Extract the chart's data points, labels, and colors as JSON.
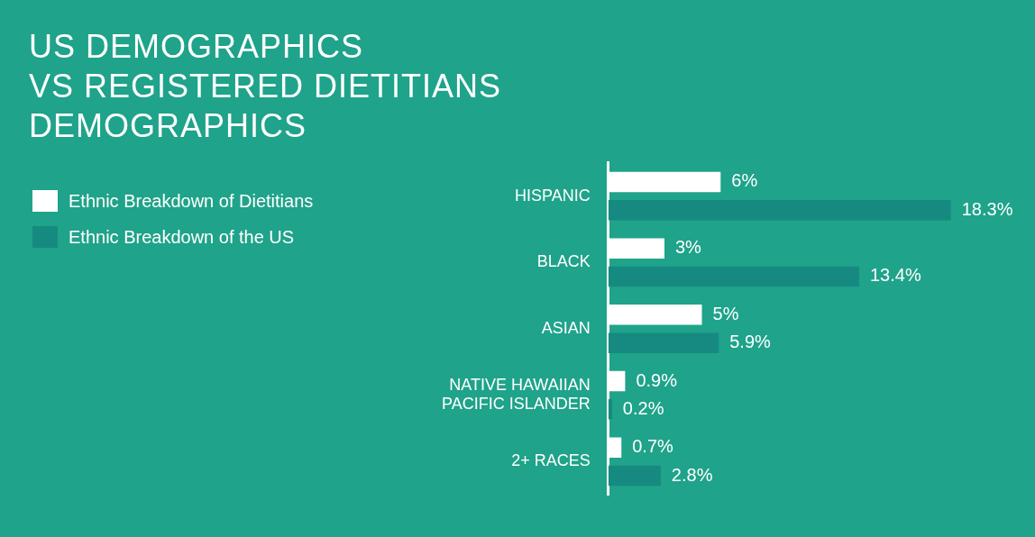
{
  "chart_data": {
    "type": "bar",
    "orientation": "horizontal",
    "title": "US DEMOGRAPHICS\nVS REGISTERED DIETITIANS\nDEMOGRAPHICS",
    "categories": [
      "HISPANIC",
      "BLACK",
      "ASIAN",
      "NATIVE HAWAIIAN PACIFIC ISLANDER",
      "2+ RACES"
    ],
    "series": [
      {
        "name": "Ethnic Breakdown of Dietitians",
        "color": "#ffffff",
        "values": [
          6,
          3,
          5,
          0.9,
          0.7
        ],
        "value_labels": [
          "6%",
          "3%",
          "5%",
          "0.9%",
          "0.7%"
        ]
      },
      {
        "name": "Ethnic Breakdown of the US",
        "color": "#168a80",
        "values": [
          18.3,
          13.4,
          5.9,
          0.2,
          2.8
        ],
        "value_labels": [
          "18.3%",
          "13.4%",
          "5.9%",
          "0.2%",
          "2.8%"
        ]
      }
    ],
    "legend": "left"
  }
}
